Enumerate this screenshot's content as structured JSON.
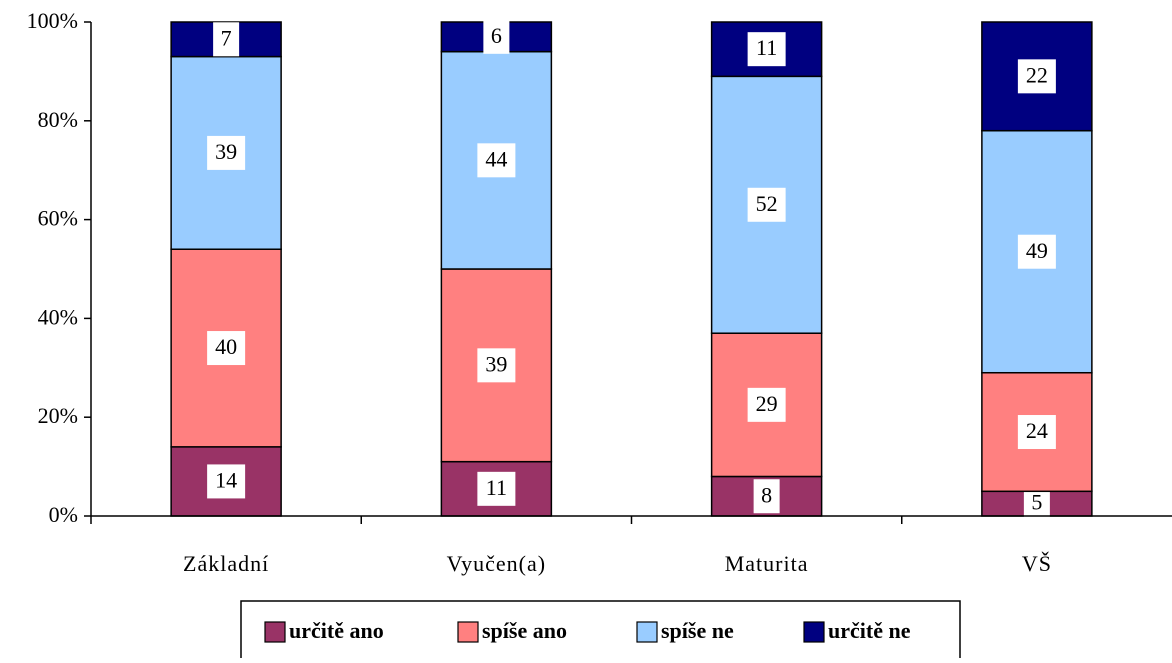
{
  "chart_data": {
    "type": "bar",
    "stacked": true,
    "percent_stacked": true,
    "categories": [
      "Základní",
      "Vyučen(a)",
      "Maturita",
      "VŠ"
    ],
    "series": [
      {
        "name": "určitě ano",
        "values": [
          14,
          11,
          8,
          5
        ],
        "color": "#993366"
      },
      {
        "name": "spíše ano",
        "values": [
          40,
          39,
          29,
          24
        ],
        "color": "#ff8080"
      },
      {
        "name": "spíše ne",
        "values": [
          39,
          44,
          52,
          49
        ],
        "color": "#99ccff"
      },
      {
        "name": "určitě ne",
        "values": [
          7,
          6,
          11,
          22
        ],
        "color": "#000080"
      }
    ],
    "ylim": [
      0,
      100
    ],
    "yticks": [
      "0%",
      "20%",
      "40%",
      "60%",
      "80%",
      "100%"
    ],
    "grid": false,
    "legend": "bottom"
  }
}
